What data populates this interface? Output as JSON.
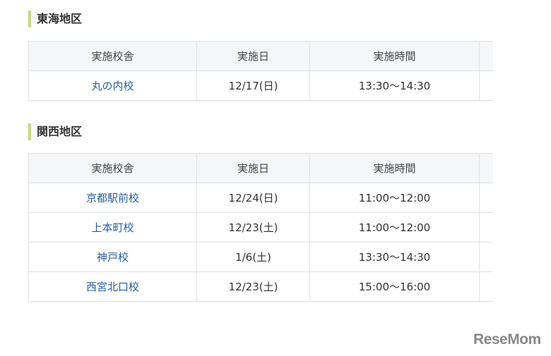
{
  "sections": [
    {
      "title": "東海地区",
      "headers": [
        "実施校舎",
        "実施日",
        "実施時間",
        ""
      ],
      "rows": [
        [
          "丸の内校",
          "12/17(日)",
          "13:30～14:30"
        ]
      ]
    },
    {
      "title": "関西地区",
      "headers": [
        "実施校舎",
        "実施日",
        "実施時間",
        ""
      ],
      "rows": [
        [
          "京都駅前校",
          "12/24(日)",
          "11:00～12:00"
        ],
        [
          "上本町校",
          "12/23(土)",
          "11:00～12:00"
        ],
        [
          "神戸校",
          "1/6(土)",
          "13:30～14:30"
        ],
        [
          "西宮北口校",
          "12/23(土)",
          "15:00～16:00"
        ]
      ]
    }
  ],
  "watermark": "ReseMom",
  "colors": {
    "accent": "#c9d67a",
    "link": "#2a5f9e",
    "header_bg": "#f4f6f7"
  }
}
